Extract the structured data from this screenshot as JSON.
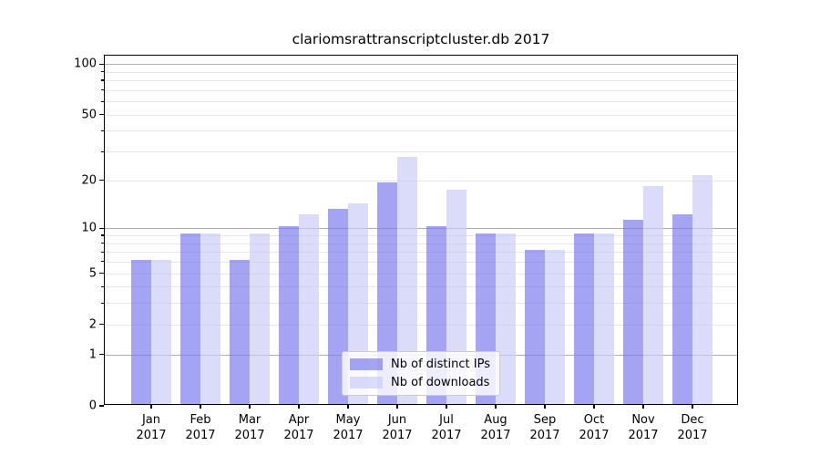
{
  "chart_data": {
    "type": "bar",
    "title": "clariomsrattranscriptcluster.db 2017",
    "categories": [
      "Jan",
      "Feb",
      "Mar",
      "Apr",
      "May",
      "Jun",
      "Jul",
      "Aug",
      "Sep",
      "Oct",
      "Nov",
      "Dec"
    ],
    "category_year": "2017",
    "series": [
      {
        "name": "Nb of distinct IPs",
        "color": "#a4a4f3",
        "fill": "rgba(117,117,237,0.66)",
        "values": [
          6,
          9,
          6,
          10,
          13,
          19,
          10,
          9,
          7,
          9,
          11,
          12
        ]
      },
      {
        "name": "Nb of downloads",
        "color": "#dbdbfa",
        "fill": "rgba(201,201,247,0.66)",
        "values": [
          6,
          9,
          9,
          12,
          14,
          27,
          17,
          9,
          7,
          9,
          18,
          21
        ]
      }
    ],
    "y_scale": "log1p",
    "ylim": [
      0,
      112
    ],
    "y_ticks": [
      100,
      50,
      20,
      10,
      5,
      2,
      1,
      0
    ],
    "y_minor_ticks": [
      2,
      3,
      4,
      5,
      6,
      7,
      8,
      9,
      20,
      30,
      40,
      50,
      60,
      70,
      80,
      90
    ],
    "y_major_gridlines": [
      1,
      10,
      100
    ],
    "grid": true,
    "legend_position": "lower center"
  },
  "styles": {
    "background": "#ffffff",
    "axis_color": "#000000",
    "major_grid_color": "#b0b0b0",
    "minor_grid_color": "#e7e7e7",
    "text_color": "#000000",
    "legend_border_color": "#cccccc"
  }
}
